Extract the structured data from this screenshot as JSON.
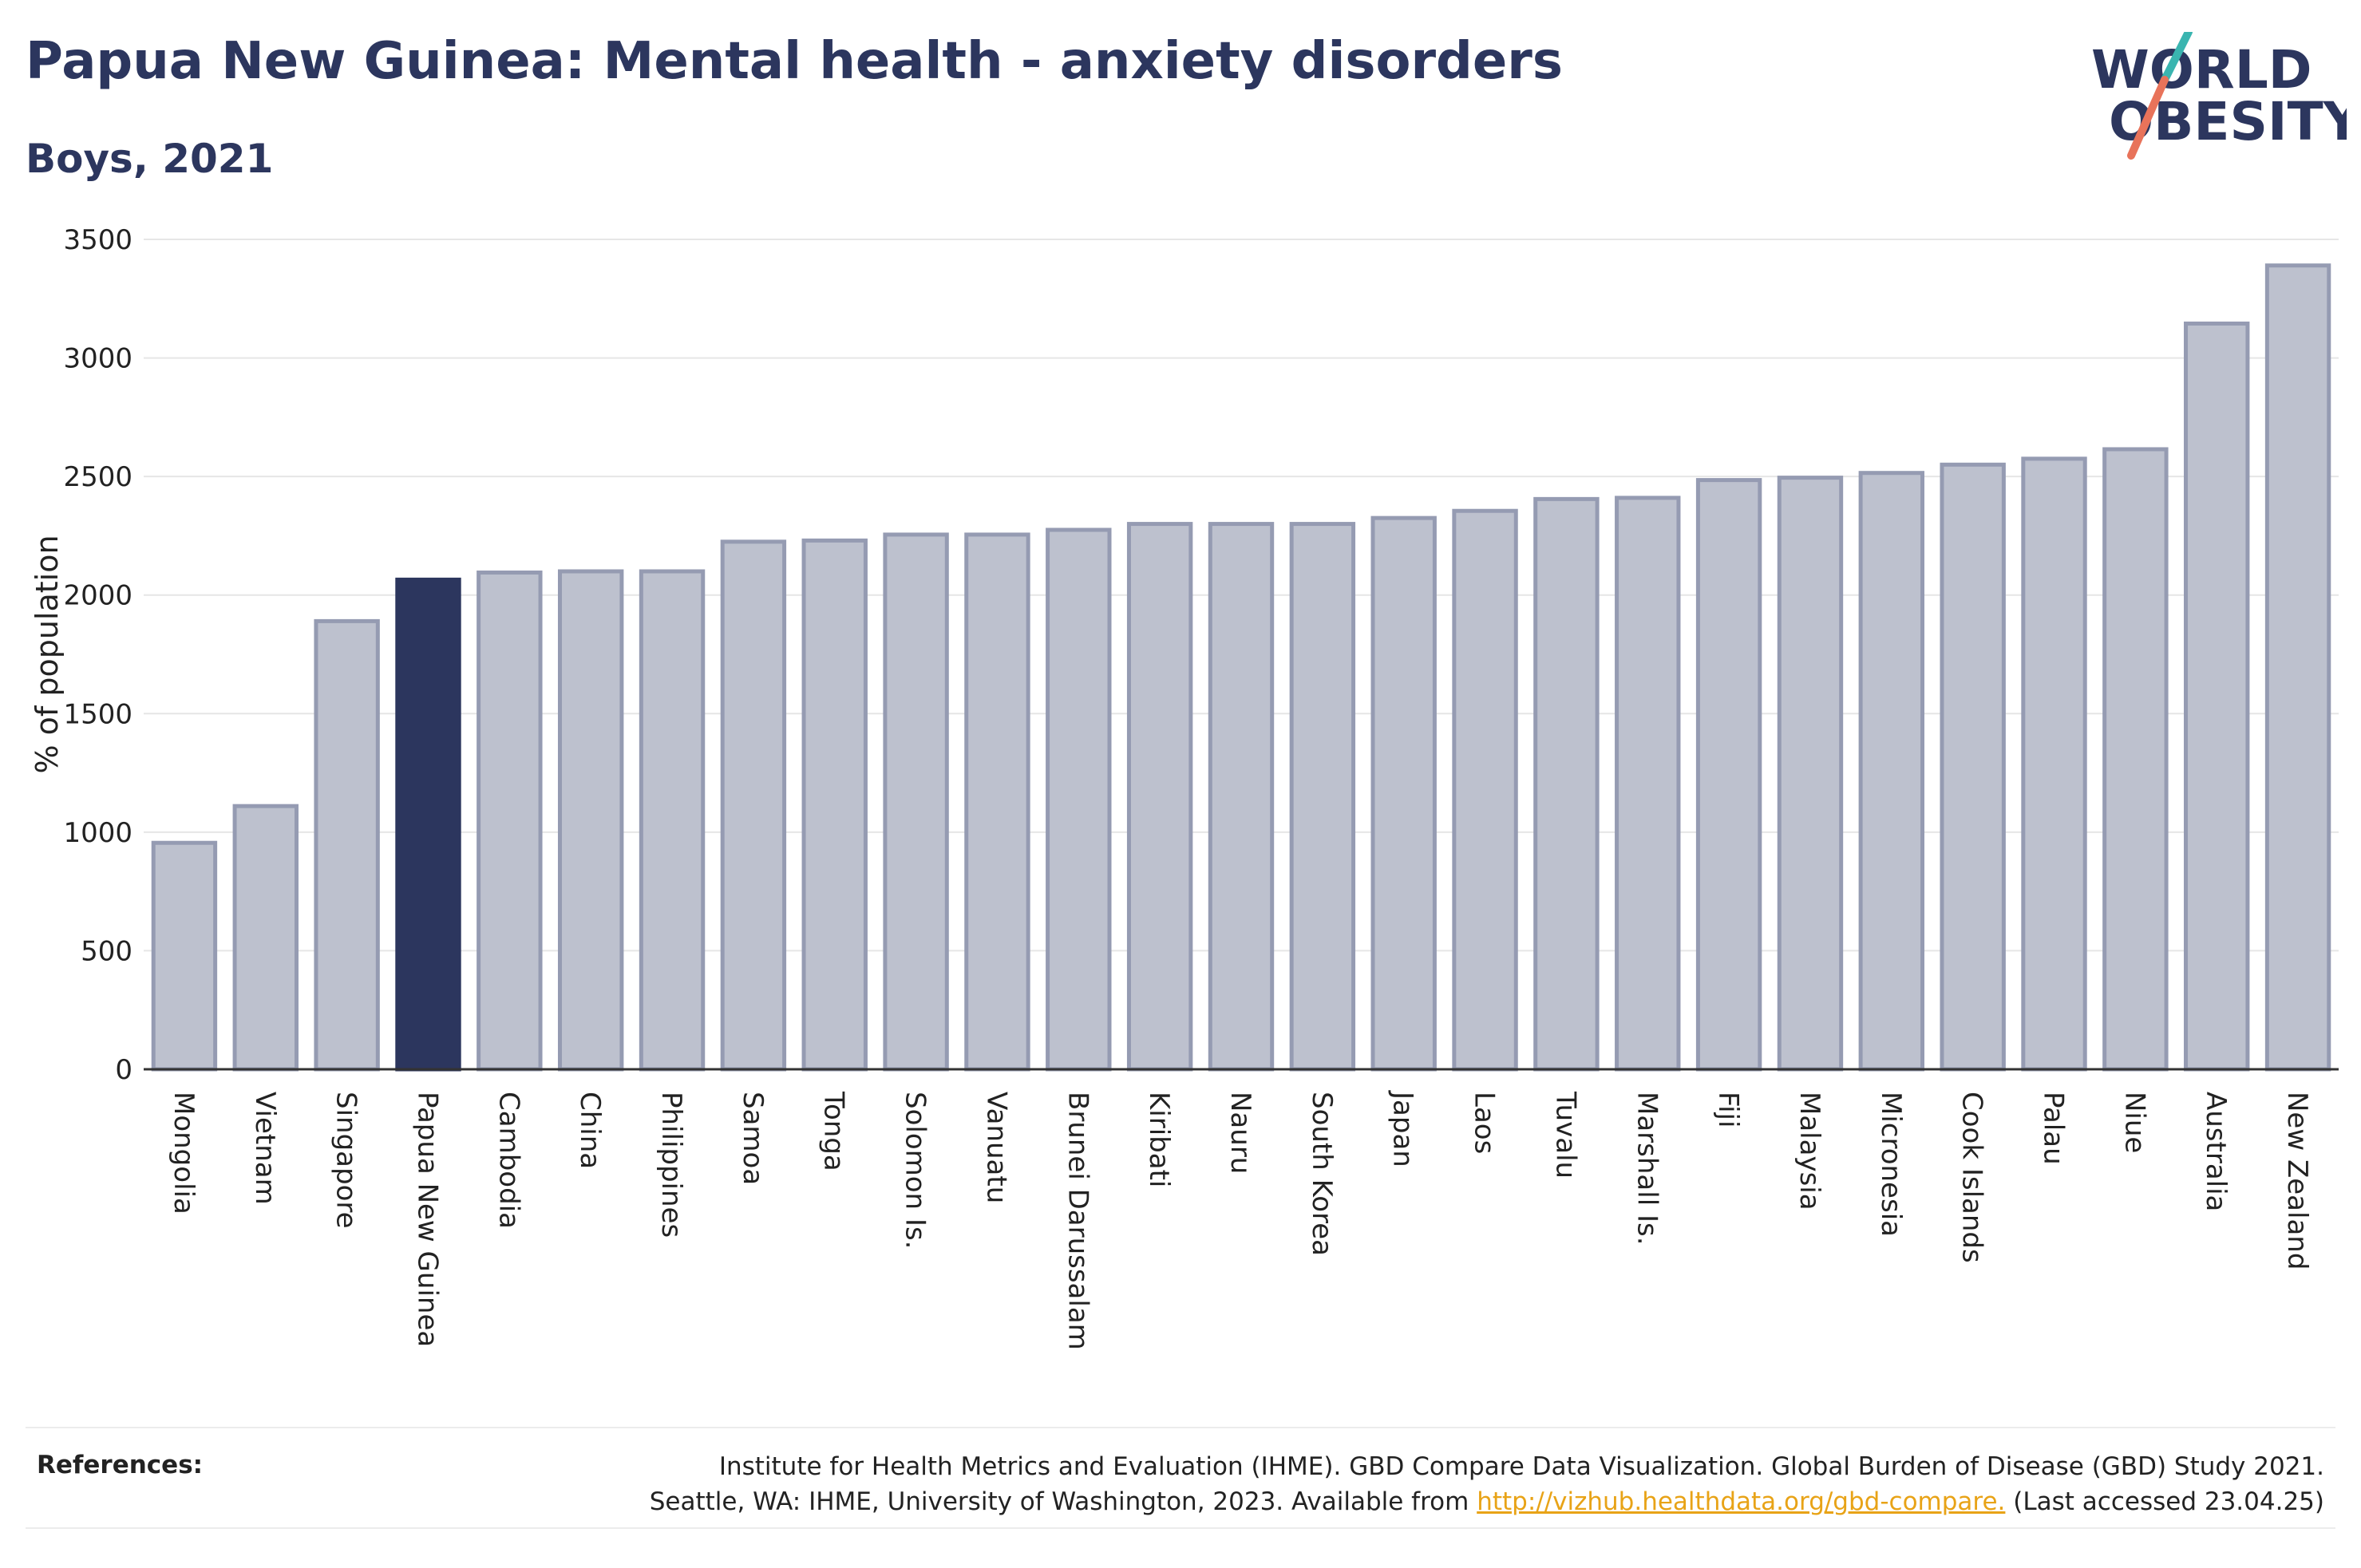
{
  "header": {
    "title": "Papua New Guinea: Mental health - anxiety disorders",
    "subtitle": "Boys, 2021"
  },
  "logo": {
    "line1": "WORLD",
    "line2": "OBESITY",
    "color": "#2c365e",
    "slash_top_color": "#3ab5b0",
    "slash_bottom_color": "#e8735a"
  },
  "chart_data": {
    "type": "bar",
    "ylabel": "% of population",
    "xlabel": "",
    "ylim": [
      0,
      3500
    ],
    "yticks": [
      0,
      500,
      1000,
      1500,
      2000,
      2500,
      3000,
      3500
    ],
    "grid": true,
    "highlight": "Papua New Guinea",
    "colors": {
      "bar": "#bdc1ce",
      "bar_edge": "#959bb2",
      "highlight": "#2c365e",
      "grid": "#e6e6e6",
      "axis": "#333333"
    },
    "categories": [
      "Mongolia",
      "Vietnam",
      "Singapore",
      "Papua New Guinea",
      "Cambodia",
      "China",
      "Philippines",
      "Samoa",
      "Tonga",
      "Solomon Is.",
      "Vanuatu",
      "Brunei Darussalam",
      "Kiribati",
      "Nauru",
      "South Korea",
      "Japan",
      "Laos",
      "Tuvalu",
      "Marshall Is.",
      "Fiji",
      "Malaysia",
      "Micronesia",
      "Cook Islands",
      "Palau",
      "Niue",
      "Australia",
      "New Zealand"
    ],
    "values": [
      955,
      1110,
      1890,
      2065,
      2095,
      2100,
      2100,
      2225,
      2230,
      2255,
      2255,
      2275,
      2300,
      2300,
      2300,
      2325,
      2355,
      2405,
      2410,
      2485,
      2495,
      2515,
      2550,
      2575,
      2615,
      3145,
      3390
    ]
  },
  "references": {
    "label": "References:",
    "line1": "Institute for Health Metrics and Evaluation (IHME). GBD Compare Data Visualization. Global Burden of Disease (GBD) Study 2021.",
    "line2_before": "Seattle, WA: IHME, University of Washington, 2023. Available from ",
    "link": "http://vizhub.healthdata.org/gbd-compare.",
    "line2_after": " (Last accessed 23.04.25)"
  }
}
